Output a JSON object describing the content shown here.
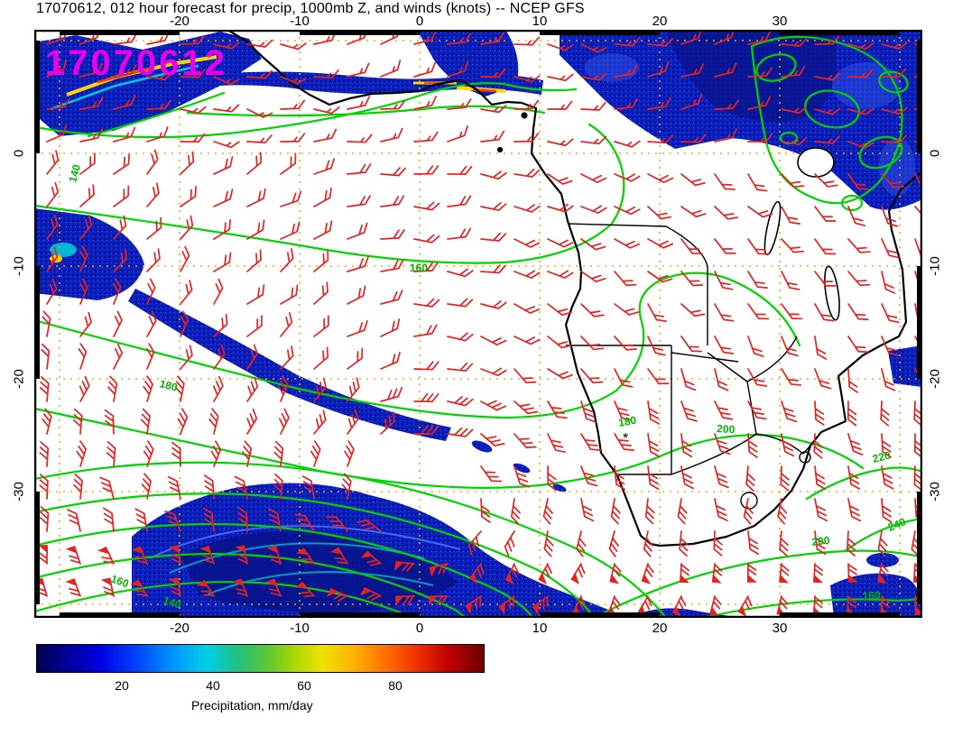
{
  "title": "17070612, 012 hour forecast for precip, 1000mb Z, and winds (knots) -- NCEP GFS",
  "overlay_timestamp": "17070612",
  "axes": {
    "lon_ticks": [
      "-20",
      "-10",
      "0",
      "10",
      "20",
      "30"
    ],
    "lat_ticks": [
      "0",
      "-10",
      "-20",
      "-30"
    ]
  },
  "contour_levels": [
    "140",
    "160",
    "180",
    "200",
    "220",
    "240"
  ],
  "layers": {
    "precipitation": {
      "type": "filled shading",
      "units": "mm/day"
    },
    "geopotential_height_1000mb": {
      "type": "contours",
      "color": "#00d400",
      "levels": [
        "140",
        "160",
        "180",
        "200",
        "220",
        "240"
      ]
    },
    "wind": {
      "type": "barbs",
      "color": "#e42222",
      "units": "knots"
    }
  },
  "station_marker": "*",
  "colorbar": {
    "ticks": [
      "20",
      "40",
      "60",
      "80"
    ],
    "label": "Precipitation, mm/day",
    "gradient": [
      "#000052 0%",
      "#000090 6%",
      "#0000e0 14%",
      "#0040ff 22%",
      "#0090ff 30%",
      "#00d0e8 38%",
      "#20c080 45%",
      "#60c830 52%",
      "#b0d800 58%",
      "#f0e000 64%",
      "#ffb000 71%",
      "#ff7000 78%",
      "#f03000 85%",
      "#c00000 92%",
      "#700000 100%"
    ]
  },
  "chart_data": {
    "type": "heatmap",
    "title": "17070612, 012 hour forecast for precip, 1000mb Z, and winds (knots) -- NCEP GFS",
    "model": "NCEP GFS",
    "run": "17070612",
    "forecast_hour": "012",
    "x_tick_values": [
      -20,
      -10,
      0,
      10,
      20,
      30
    ],
    "y_tick_values": [
      0,
      -10,
      -20,
      -30
    ],
    "contour_levels": [
      140,
      160,
      180,
      200,
      220,
      240
    ],
    "colorbar_ticks": [
      20,
      40,
      60,
      80
    ],
    "colorbar_label": "Precipitation, mm/day"
  }
}
